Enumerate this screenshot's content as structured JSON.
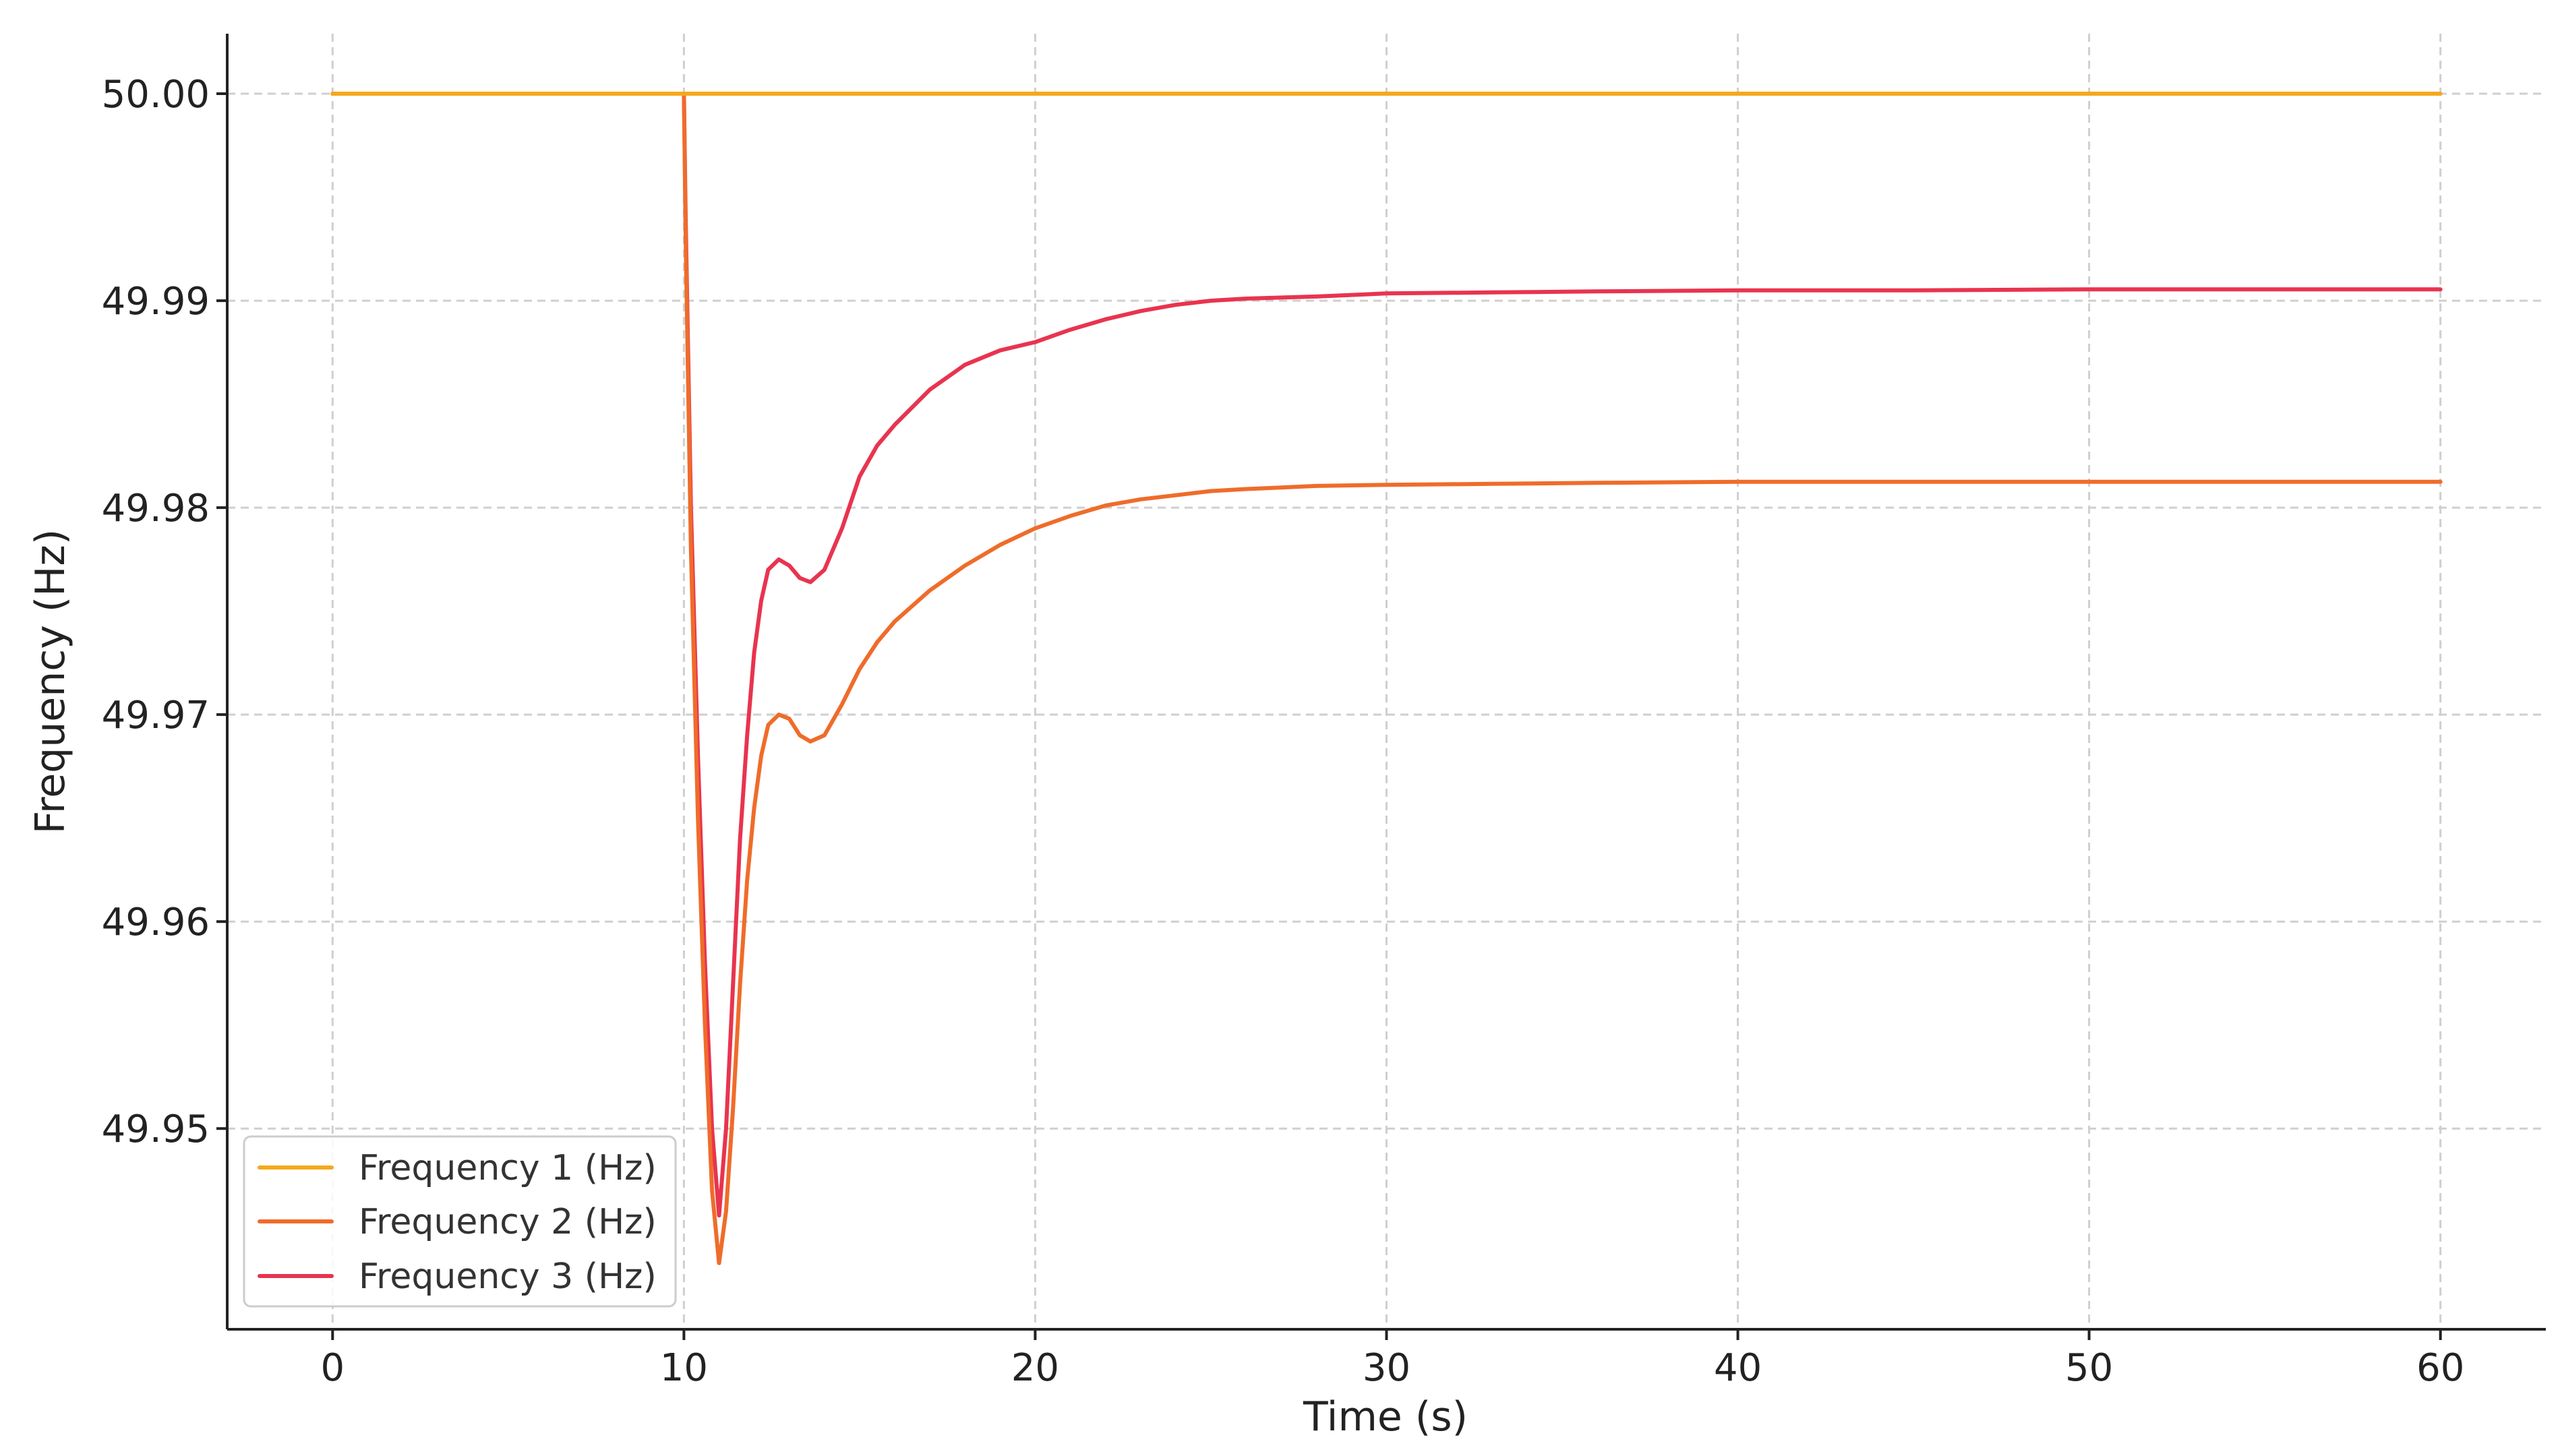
{
  "chart_data": {
    "type": "line",
    "title": "",
    "xlabel": "Time (s)",
    "ylabel": "Frequency (Hz)",
    "xlim": [
      -3,
      63
    ],
    "ylim": [
      49.9403,
      50.0029
    ],
    "xticks": [
      0,
      10,
      20,
      30,
      40,
      50,
      60
    ],
    "xtick_labels": [
      "0",
      "10",
      "20",
      "30",
      "40",
      "50",
      "60"
    ],
    "yticks": [
      49.95,
      49.96,
      49.97,
      49.98,
      49.99,
      50.0
    ],
    "ytick_labels": [
      "49.95",
      "49.96",
      "49.97",
      "49.98",
      "49.99",
      "50.00"
    ],
    "grid": true,
    "legend_position": "lower-left",
    "series": [
      {
        "name": "Frequency 1 (Hz)",
        "color": "#f5a81c",
        "x": [
          0,
          60
        ],
        "y": [
          50.0,
          50.0
        ]
      },
      {
        "name": "Frequency 2 (Hz)",
        "color": "#ef6c2a",
        "x": [
          0,
          10,
          10.05,
          10.2,
          10.4,
          10.6,
          10.8,
          11,
          11.2,
          11.4,
          11.6,
          11.8,
          12,
          12.2,
          12.4,
          12.7,
          13,
          13.3,
          13.6,
          14,
          14.5,
          15,
          15.5,
          16,
          17,
          18,
          19,
          20,
          21,
          22,
          23,
          24,
          25,
          26,
          28,
          30,
          33,
          36,
          40,
          45,
          50,
          55,
          60
        ],
        "y": [
          50.0,
          50.0,
          49.993,
          49.978,
          49.965,
          49.955,
          49.947,
          49.9435,
          49.946,
          49.951,
          49.957,
          49.962,
          49.9655,
          49.968,
          49.9695,
          49.97,
          49.9698,
          49.969,
          49.9687,
          49.969,
          49.9705,
          49.9722,
          49.9735,
          49.9745,
          49.976,
          49.9772,
          49.9782,
          49.979,
          49.9796,
          49.9801,
          49.9804,
          49.9806,
          49.9808,
          49.9809,
          49.98105,
          49.9811,
          49.98115,
          49.9812,
          49.98125,
          49.98125,
          49.98125,
          49.98125,
          49.98125
        ]
      },
      {
        "name": "Frequency 3 (Hz)",
        "color": "#e8344f",
        "x": [
          0,
          10,
          10.05,
          10.2,
          10.4,
          10.6,
          10.8,
          11,
          11.2,
          11.4,
          11.6,
          11.8,
          12,
          12.2,
          12.4,
          12.7,
          13,
          13.3,
          13.6,
          14,
          14.5,
          15,
          15.5,
          16,
          17,
          18,
          19,
          20,
          21,
          22,
          23,
          24,
          25,
          26,
          28,
          30,
          33,
          36,
          40,
          45,
          50,
          55,
          60
        ],
        "y": [
          50.0,
          50.0,
          49.994,
          49.98,
          49.968,
          49.958,
          49.95,
          49.9458,
          49.95,
          49.957,
          49.964,
          49.969,
          49.973,
          49.9755,
          49.977,
          49.9775,
          49.9772,
          49.9766,
          49.9764,
          49.977,
          49.979,
          49.9815,
          49.983,
          49.984,
          49.9857,
          49.9869,
          49.9876,
          49.988,
          49.9886,
          49.9891,
          49.9895,
          49.9898,
          49.99,
          49.9901,
          49.9902,
          49.99035,
          49.9904,
          49.99045,
          49.9905,
          49.9905,
          49.99055,
          49.99055,
          49.99055
        ]
      }
    ]
  }
}
